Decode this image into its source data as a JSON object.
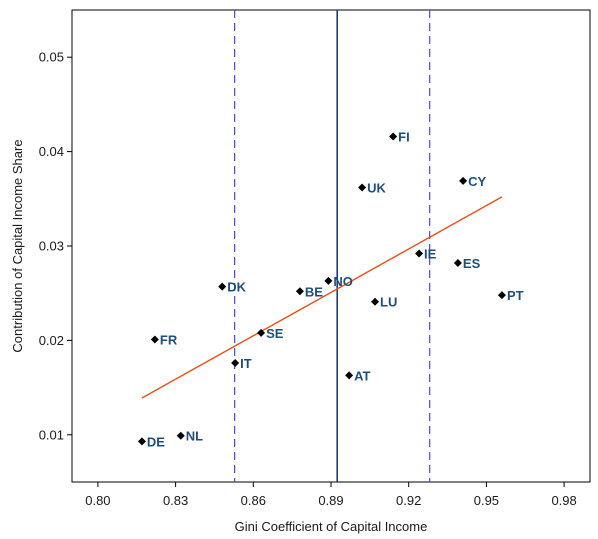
{
  "chart_data": {
    "type": "scatter",
    "title": "",
    "xlabel": "Gini Coefficient of Capital Income",
    "ylabel": "Contribution of Capital Income Share",
    "xlim": [
      0.79,
      0.99
    ],
    "ylim": [
      0.005,
      0.055
    ],
    "xticks": [
      0.8,
      0.83,
      0.86,
      0.89,
      0.92,
      0.95,
      0.98
    ],
    "xtick_labels": [
      "0.80",
      "0.83",
      "0.86",
      "0.89",
      "0.92",
      "0.95",
      "0.98"
    ],
    "yticks": [
      0.01,
      0.02,
      0.03,
      0.04,
      0.05
    ],
    "ytick_labels": [
      "0.01",
      "0.02",
      "0.03",
      "0.04",
      "0.05"
    ],
    "grid": false,
    "points": [
      {
        "label": "FI",
        "x": 0.914,
        "y": 0.0416
      },
      {
        "label": "CY",
        "x": 0.941,
        "y": 0.0369
      },
      {
        "label": "UK",
        "x": 0.902,
        "y": 0.0362
      },
      {
        "label": "IE",
        "x": 0.924,
        "y": 0.0292
      },
      {
        "label": "ES",
        "x": 0.939,
        "y": 0.0282
      },
      {
        "label": "NO",
        "x": 0.889,
        "y": 0.0263
      },
      {
        "label": "DK",
        "x": 0.848,
        "y": 0.0257
      },
      {
        "label": "BE",
        "x": 0.878,
        "y": 0.0252
      },
      {
        "label": "PT",
        "x": 0.956,
        "y": 0.0248
      },
      {
        "label": "LU",
        "x": 0.907,
        "y": 0.0241
      },
      {
        "label": "SE",
        "x": 0.863,
        "y": 0.0208
      },
      {
        "label": "FR",
        "x": 0.822,
        "y": 0.0201
      },
      {
        "label": "IT",
        "x": 0.853,
        "y": 0.0176
      },
      {
        "label": "AT",
        "x": 0.897,
        "y": 0.0163
      },
      {
        "label": "NL",
        "x": 0.832,
        "y": 0.0099
      },
      {
        "label": "DE",
        "x": 0.817,
        "y": 0.0093
      }
    ],
    "fit_line": {
      "x": [
        0.817,
        0.956
      ],
      "y": [
        0.0139,
        0.0352
      ],
      "color": "#e8501a"
    },
    "vlines": [
      {
        "x": 0.8924,
        "style": "solid",
        "color": "#1f3a7a"
      },
      {
        "x": 0.8528,
        "style": "dashed",
        "color": "#4a4ad0"
      },
      {
        "x": 0.9281,
        "style": "dashed",
        "color": "#4a4ad0"
      }
    ],
    "marker_color": "#000000",
    "label_color": "#1f4e79"
  }
}
